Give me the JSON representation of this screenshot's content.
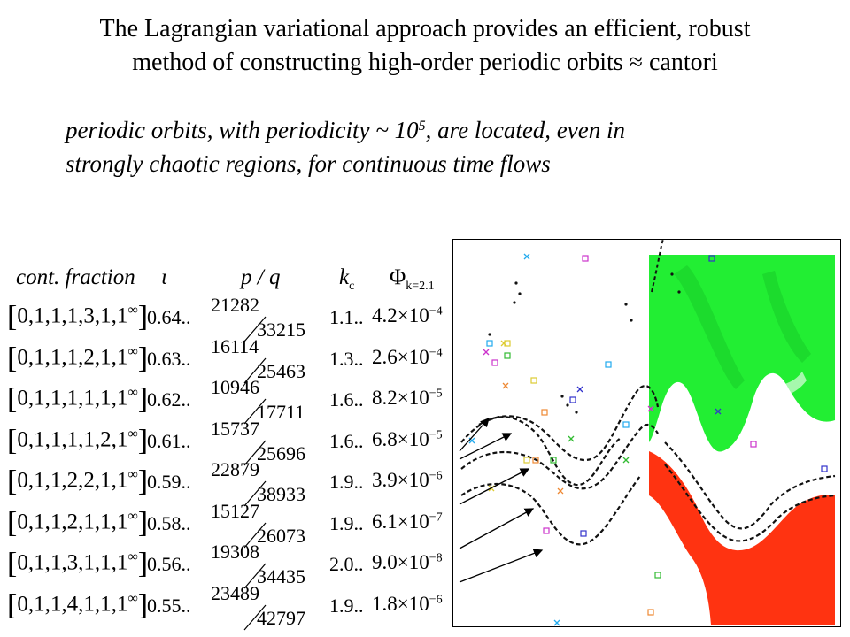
{
  "slide": {
    "title_line1": "The Lagrangian variational approach provides an efficient, robust",
    "title_line2": "method of constructing high-order periodic orbits ≈ cantori",
    "subtitle_a": "periodic orbits, with periodicity ~ 10",
    "subtitle_exp": "5",
    "subtitle_b": ", are located, even in",
    "subtitle_line2": "strongly chaotic regions, for continuous time flows"
  },
  "table": {
    "headers": {
      "cf": "cont. fraction",
      "iota": "ι",
      "pq": "p / q",
      "kc": "k",
      "kc_sub": "c",
      "phi": "Φ",
      "phi_sub": "k=2.1"
    },
    "rows": [
      {
        "cf": "0,1,1,1,3,1,1",
        "iota": "0.64..",
        "p": "21282",
        "q": "33215",
        "kc": "1.1..",
        "phi_m": "4.2×10",
        "phi_e": "−4"
      },
      {
        "cf": "0,1,1,1,2,1,1",
        "iota": "0.63..",
        "p": "16114",
        "q": "25463",
        "kc": "1.3..",
        "phi_m": "2.6×10",
        "phi_e": "−4"
      },
      {
        "cf": "0,1,1,1,1,1,1",
        "iota": "0.62..",
        "p": "10946",
        "q": "17711",
        "kc": "1.6..",
        "phi_m": "8.2×10",
        "phi_e": "−5"
      },
      {
        "cf": "0,1,1,1,1,2,1",
        "iota": "0.61..",
        "p": "15737",
        "q": "25696",
        "kc": "1.6..",
        "phi_m": "6.8×10",
        "phi_e": "−5"
      },
      {
        "cf": "0,1,1,2,2,1,1",
        "iota": "0.59..",
        "p": "22879",
        "q": "38933",
        "kc": "1.9..",
        "phi_m": "3.9×10",
        "phi_e": "−6"
      },
      {
        "cf": "0,1,1,2,1,1,1",
        "iota": "0.58..",
        "p": "15127",
        "q": "26073",
        "kc": "1.9..",
        "phi_m": "6.1×10",
        "phi_e": "−7"
      },
      {
        "cf": "0,1,1,3,1,1,1",
        "iota": "0.56..",
        "p": "19308",
        "q": "34435",
        "kc": "2.0..",
        "phi_m": "9.0×10",
        "phi_e": "−8"
      },
      {
        "cf": "0,1,1,4,1,1,1",
        "iota": "0.55..",
        "p": "23489",
        "q": "42797",
        "kc": "1.9..",
        "phi_m": "1.8×10",
        "phi_e": "−6"
      }
    ],
    "infinity": "∞"
  },
  "plot": {
    "green_color": "#22ee33",
    "red_color": "#ff3311",
    "marker_colors": [
      "#cc33cc",
      "#3333cc",
      "#22aaee",
      "#ddcc33",
      "#ee8833",
      "#33bb33"
    ]
  }
}
